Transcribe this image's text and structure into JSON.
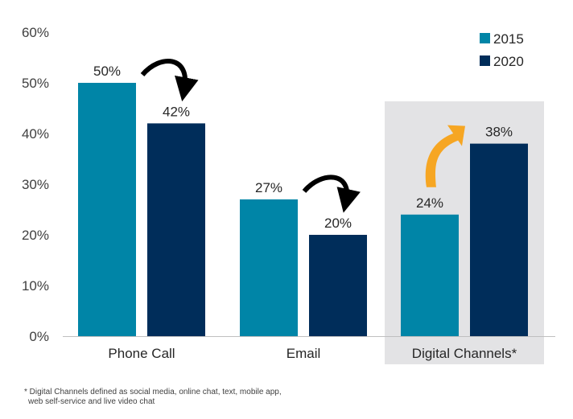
{
  "chart_data": {
    "type": "bar",
    "categories": [
      "Phone Call",
      "Email",
      "Digital Channels*"
    ],
    "series": [
      {
        "name": "2015",
        "values": [
          50,
          27,
          24
        ],
        "color": "#0085A7"
      },
      {
        "name": "2020",
        "values": [
          42,
          20,
          38
        ],
        "color": "#002D5A"
      }
    ],
    "data_labels": [
      [
        "50%",
        "42%"
      ],
      [
        "27%",
        "20%"
      ],
      [
        "24%",
        "38%"
      ]
    ],
    "y_ticks": [
      "0%",
      "10%",
      "20%",
      "30%",
      "40%",
      "50%",
      "60%"
    ],
    "ylim": [
      0,
      60
    ],
    "title": "",
    "xlabel": "",
    "ylabel": "",
    "grid": false,
    "legend_position": "top-right",
    "highlighted_category": "Digital Channels*",
    "highlight_color": "#E3E3E5",
    "trend_arrows": [
      {
        "category": "Phone Call",
        "direction": "down",
        "color": "#000000"
      },
      {
        "category": "Email",
        "direction": "down",
        "color": "#000000"
      },
      {
        "category": "Digital Channels*",
        "direction": "up",
        "color": "#F6A623"
      }
    ]
  },
  "footnote": {
    "line1": "* Digital Channels defined as social media, online chat, text, mobile app,",
    "line2": "web self-service and live video chat"
  }
}
